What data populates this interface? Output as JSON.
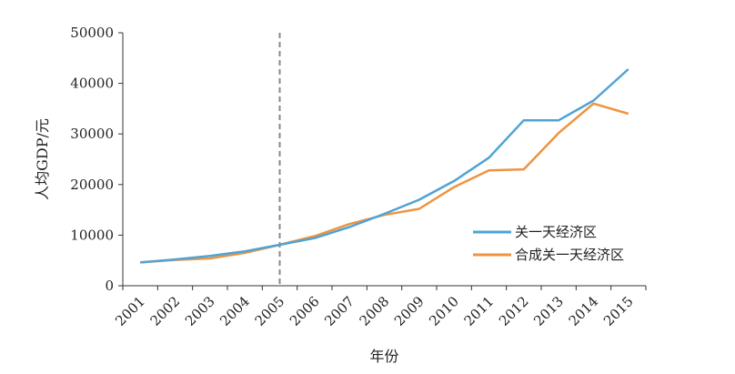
{
  "chart_data": {
    "type": "line",
    "title": "",
    "xlabel": "年份",
    "ylabel": "人均GDP/元",
    "categories": [
      "2001",
      "2002",
      "2003",
      "2004",
      "2005",
      "2006",
      "2007",
      "2008",
      "2009",
      "2010",
      "2011",
      "2012",
      "2013",
      "2014",
      "2015"
    ],
    "ylim": [
      0,
      50000
    ],
    "yticks": [
      "0",
      "10000",
      "20000",
      "30000",
      "40000",
      "50000"
    ],
    "grid": false,
    "legend_position": "right-middle",
    "reference_line": {
      "category": "2005",
      "style": "dashed",
      "color": "#888888"
    },
    "series": [
      {
        "name": "关一天经济区",
        "color": "#4fa3d6",
        "values": [
          4600,
          5200,
          5900,
          6800,
          8100,
          9400,
          11600,
          14200,
          17000,
          20700,
          25300,
          32700,
          32700,
          36600,
          42800
        ]
      },
      {
        "name": "合成关一天经济区",
        "color": "#ee9440",
        "values": [
          4600,
          5100,
          5400,
          6500,
          8100,
          9800,
          12200,
          14000,
          15200,
          19500,
          22800,
          23000,
          30200,
          36000,
          34000
        ]
      }
    ]
  }
}
